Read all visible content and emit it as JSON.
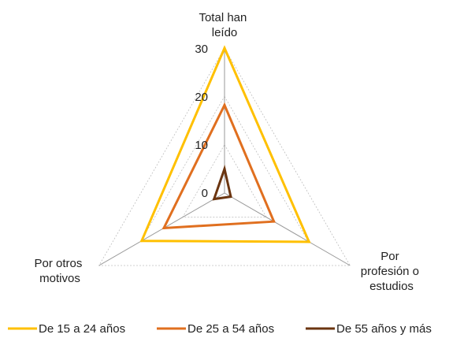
{
  "chart_data": {
    "type": "radar",
    "axes": [
      [
        "Total han",
        "leído"
      ],
      [
        "Por",
        "profesión o",
        "estudios"
      ],
      [
        "Por otros",
        "motivos"
      ]
    ],
    "ticks": [
      "0",
      "10",
      "20",
      "30"
    ],
    "tick_values": [
      0,
      10,
      20,
      30
    ],
    "rmax": 30,
    "grid": true,
    "legend_position": "bottom",
    "series": [
      {
        "name": "De 15 a 24 años",
        "color": "#FFC000",
        "values": [
          30,
          20.2,
          19.8
        ]
      },
      {
        "name": "De 25 a 54 años",
        "color": "#E06F1F",
        "values": [
          18.2,
          11.8,
          14.5
        ]
      },
      {
        "name": "De 55 años y más",
        "color": "#6B3510",
        "values": [
          5.0,
          1.5,
          2.5
        ]
      }
    ]
  }
}
